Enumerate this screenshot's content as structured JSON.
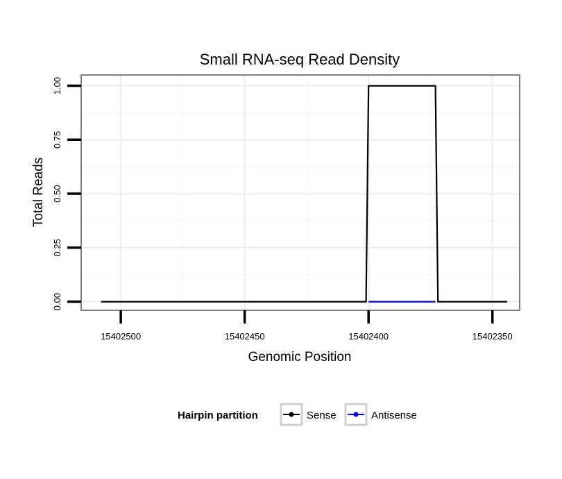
{
  "chart_data": {
    "type": "line",
    "title": "Small RNA-seq Read Density",
    "xlabel": "Genomic Position",
    "ylabel": "Total Reads",
    "xlim": [
      15402516,
      15402339
    ],
    "x_reversed": true,
    "ylim": [
      -0.04,
      1.05
    ],
    "x_ticks": [
      15402500,
      15402450,
      15402400,
      15402350
    ],
    "x_tick_labels": [
      "15402500",
      "15402450",
      "15402400",
      "15402350"
    ],
    "y_ticks": [
      0,
      0.25,
      0.5,
      0.75,
      1.0
    ],
    "y_tick_labels": [
      "0.00",
      "0.25",
      "0.50",
      "0.75",
      "1.00"
    ],
    "grid": true,
    "legend_position": "bottom",
    "legend_title": "Hairpin partition",
    "series": [
      {
        "name": "Sense",
        "color": "#000000",
        "x": [
          15402508,
          15402401,
          15402400,
          15402373,
          15402372,
          15402344
        ],
        "y": [
          0,
          0,
          1,
          1,
          0,
          0
        ]
      },
      {
        "name": "Antisense",
        "color": "#0000ff",
        "x": [
          15402400,
          15402373
        ],
        "y": [
          0,
          0
        ]
      }
    ]
  }
}
